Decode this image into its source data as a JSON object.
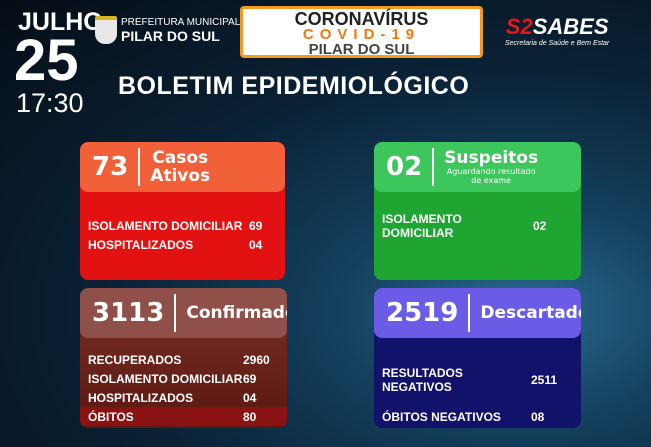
{
  "header": {
    "month": "JULHO",
    "day": "25",
    "time": "17:30",
    "prefeitura_line1": "PREFEITURA MUNICIPAL",
    "prefeitura_line2": "PILAR DO SUL",
    "covid_line1": "CORONAVÍRUS",
    "covid_line2": "COVID-19",
    "covid_line3": "PILAR DO SUL",
    "sabes_logo": "SABES",
    "sabes_subtitle": "Secretaria de Saúde e Bem Estar",
    "title": "BOLETIM EPIDEMIOLÓGICO"
  },
  "ativos": {
    "value": "73",
    "label1": "Casos",
    "label2": "Ativos",
    "rows": [
      {
        "k": "ISOLAMENTO DOMICILIAR",
        "v": "69"
      },
      {
        "k": "HOSPITALIZADOS",
        "v": "04"
      }
    ]
  },
  "suspeitos": {
    "value": "02",
    "label": "Suspeitos",
    "sub1": "Aguardando resultado",
    "sub2": "de exame",
    "rows": [
      {
        "k": "ISOLAMENTO DOMICILIAR",
        "v": "02"
      }
    ]
  },
  "confirmados": {
    "value": "3113",
    "label": "Confirmados",
    "rows": [
      {
        "k": "RECUPERADOS",
        "v": "2960"
      },
      {
        "k": "ISOLAMENTO DOMICILIAR",
        "v": "69"
      },
      {
        "k": "HOSPITALIZADOS",
        "v": "04"
      },
      {
        "k": "ÓBITOS",
        "v": "80"
      }
    ]
  },
  "descartados": {
    "value": "2519",
    "label": "Descartados",
    "rows": [
      {
        "k": "RESULTADOS NEGATIVOS",
        "v": "2511"
      },
      {
        "k": "ÓBITOS NEGATIVOS",
        "v": "08"
      }
    ]
  }
}
